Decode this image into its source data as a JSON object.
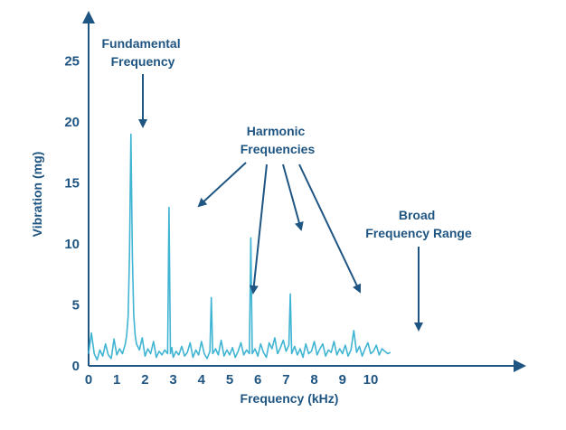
{
  "chart_data": {
    "type": "line",
    "xlabel": "Frequency (kHz)",
    "ylabel": "Vibration (mg)",
    "xlim": [
      0,
      11
    ],
    "ylim": [
      0,
      28
    ],
    "x_ticks": [
      0,
      1,
      2,
      3,
      4,
      5,
      6,
      7,
      8,
      9,
      10
    ],
    "y_ticks": [
      0,
      5,
      10,
      15,
      20,
      25
    ],
    "grid": false,
    "legend": "none",
    "colors": {
      "series": "#3fb4d3",
      "axis": "#1f5582",
      "text": "#1f5582"
    },
    "series": [
      {
        "x": [
          0.0,
          0.1,
          0.2,
          0.3,
          0.4,
          0.5,
          0.6,
          0.7,
          0.8,
          0.9,
          1.0,
          1.1,
          1.2,
          1.3,
          1.35,
          1.4,
          1.45,
          1.5,
          1.55,
          1.6,
          1.65,
          1.7,
          1.8,
          1.9,
          2.0,
          2.1,
          2.2,
          2.3,
          2.4,
          2.5,
          2.6,
          2.7,
          2.8,
          2.85,
          2.9,
          2.95,
          3.0,
          3.1,
          3.2,
          3.3,
          3.4,
          3.5,
          3.6,
          3.7,
          3.8,
          3.9,
          4.0,
          4.1,
          4.2,
          4.3,
          4.35,
          4.4,
          4.5,
          4.6,
          4.7,
          4.8,
          4.9,
          5.0,
          5.1,
          5.2,
          5.3,
          5.4,
          5.5,
          5.6,
          5.7,
          5.75,
          5.8,
          5.9,
          6.0,
          6.1,
          6.2,
          6.3,
          6.4,
          6.5,
          6.6,
          6.7,
          6.8,
          6.9,
          7.0,
          7.1,
          7.15,
          7.2,
          7.3,
          7.4,
          7.5,
          7.6,
          7.7,
          7.8,
          7.9,
          8.0,
          8.1,
          8.2,
          8.3,
          8.4,
          8.5,
          8.6,
          8.7,
          8.8,
          8.9,
          9.0,
          9.1,
          9.2,
          9.3,
          9.4,
          9.5,
          9.6,
          9.7,
          9.8,
          9.9,
          10.0,
          10.1,
          10.2,
          10.3,
          10.4,
          10.5,
          10.6,
          10.7
        ],
        "values": [
          1.0,
          2.7,
          1.0,
          0.5,
          1.3,
          0.8,
          1.8,
          0.9,
          0.6,
          2.2,
          0.9,
          1.4,
          1.0,
          1.8,
          2.5,
          4.0,
          9.0,
          19.0,
          9.0,
          4.2,
          2.5,
          1.8,
          1.3,
          2.3,
          0.8,
          1.4,
          1.0,
          2.0,
          0.7,
          1.2,
          0.9,
          1.3,
          1.0,
          13.0,
          1.0,
          1.5,
          0.7,
          1.2,
          0.9,
          1.6,
          0.8,
          1.1,
          1.9,
          0.7,
          1.3,
          0.9,
          2.0,
          1.0,
          0.6,
          1.2,
          5.6,
          1.0,
          1.4,
          0.9,
          2.1,
          0.8,
          1.3,
          0.9,
          1.5,
          0.7,
          1.2,
          1.9,
          0.9,
          1.3,
          1.0,
          10.5,
          1.0,
          1.4,
          0.8,
          1.8,
          1.1,
          0.7,
          1.9,
          1.4,
          2.3,
          1.0,
          1.5,
          2.1,
          1.2,
          1.7,
          5.9,
          1.0,
          1.6,
          0.9,
          1.4,
          0.7,
          1.8,
          1.0,
          1.2,
          2.0,
          0.9,
          1.4,
          1.8,
          0.8,
          1.3,
          1.1,
          2.0,
          0.9,
          1.4,
          1.0,
          1.7,
          0.8,
          1.3,
          2.9,
          1.1,
          1.6,
          0.8,
          1.4,
          1.9,
          1.0,
          1.2,
          1.7,
          0.9,
          1.4,
          1.2,
          1.0,
          1.1
        ]
      }
    ],
    "annotations": [
      {
        "lines": [
          "Fundamental",
          "Frequency"
        ],
        "points_to": [
          [
            1.5,
            19.0
          ]
        ]
      },
      {
        "lines": [
          "Harmonic",
          "Frequencies"
        ],
        "points_to": [
          [
            2.9,
            13.0
          ],
          [
            4.35,
            5.6
          ],
          [
            5.75,
            10.5
          ],
          [
            7.2,
            5.9
          ]
        ]
      },
      {
        "lines": [
          "Broad",
          "Frequency Range"
        ],
        "points_to": [
          [
            8.75,
            2.5
          ]
        ]
      }
    ]
  }
}
